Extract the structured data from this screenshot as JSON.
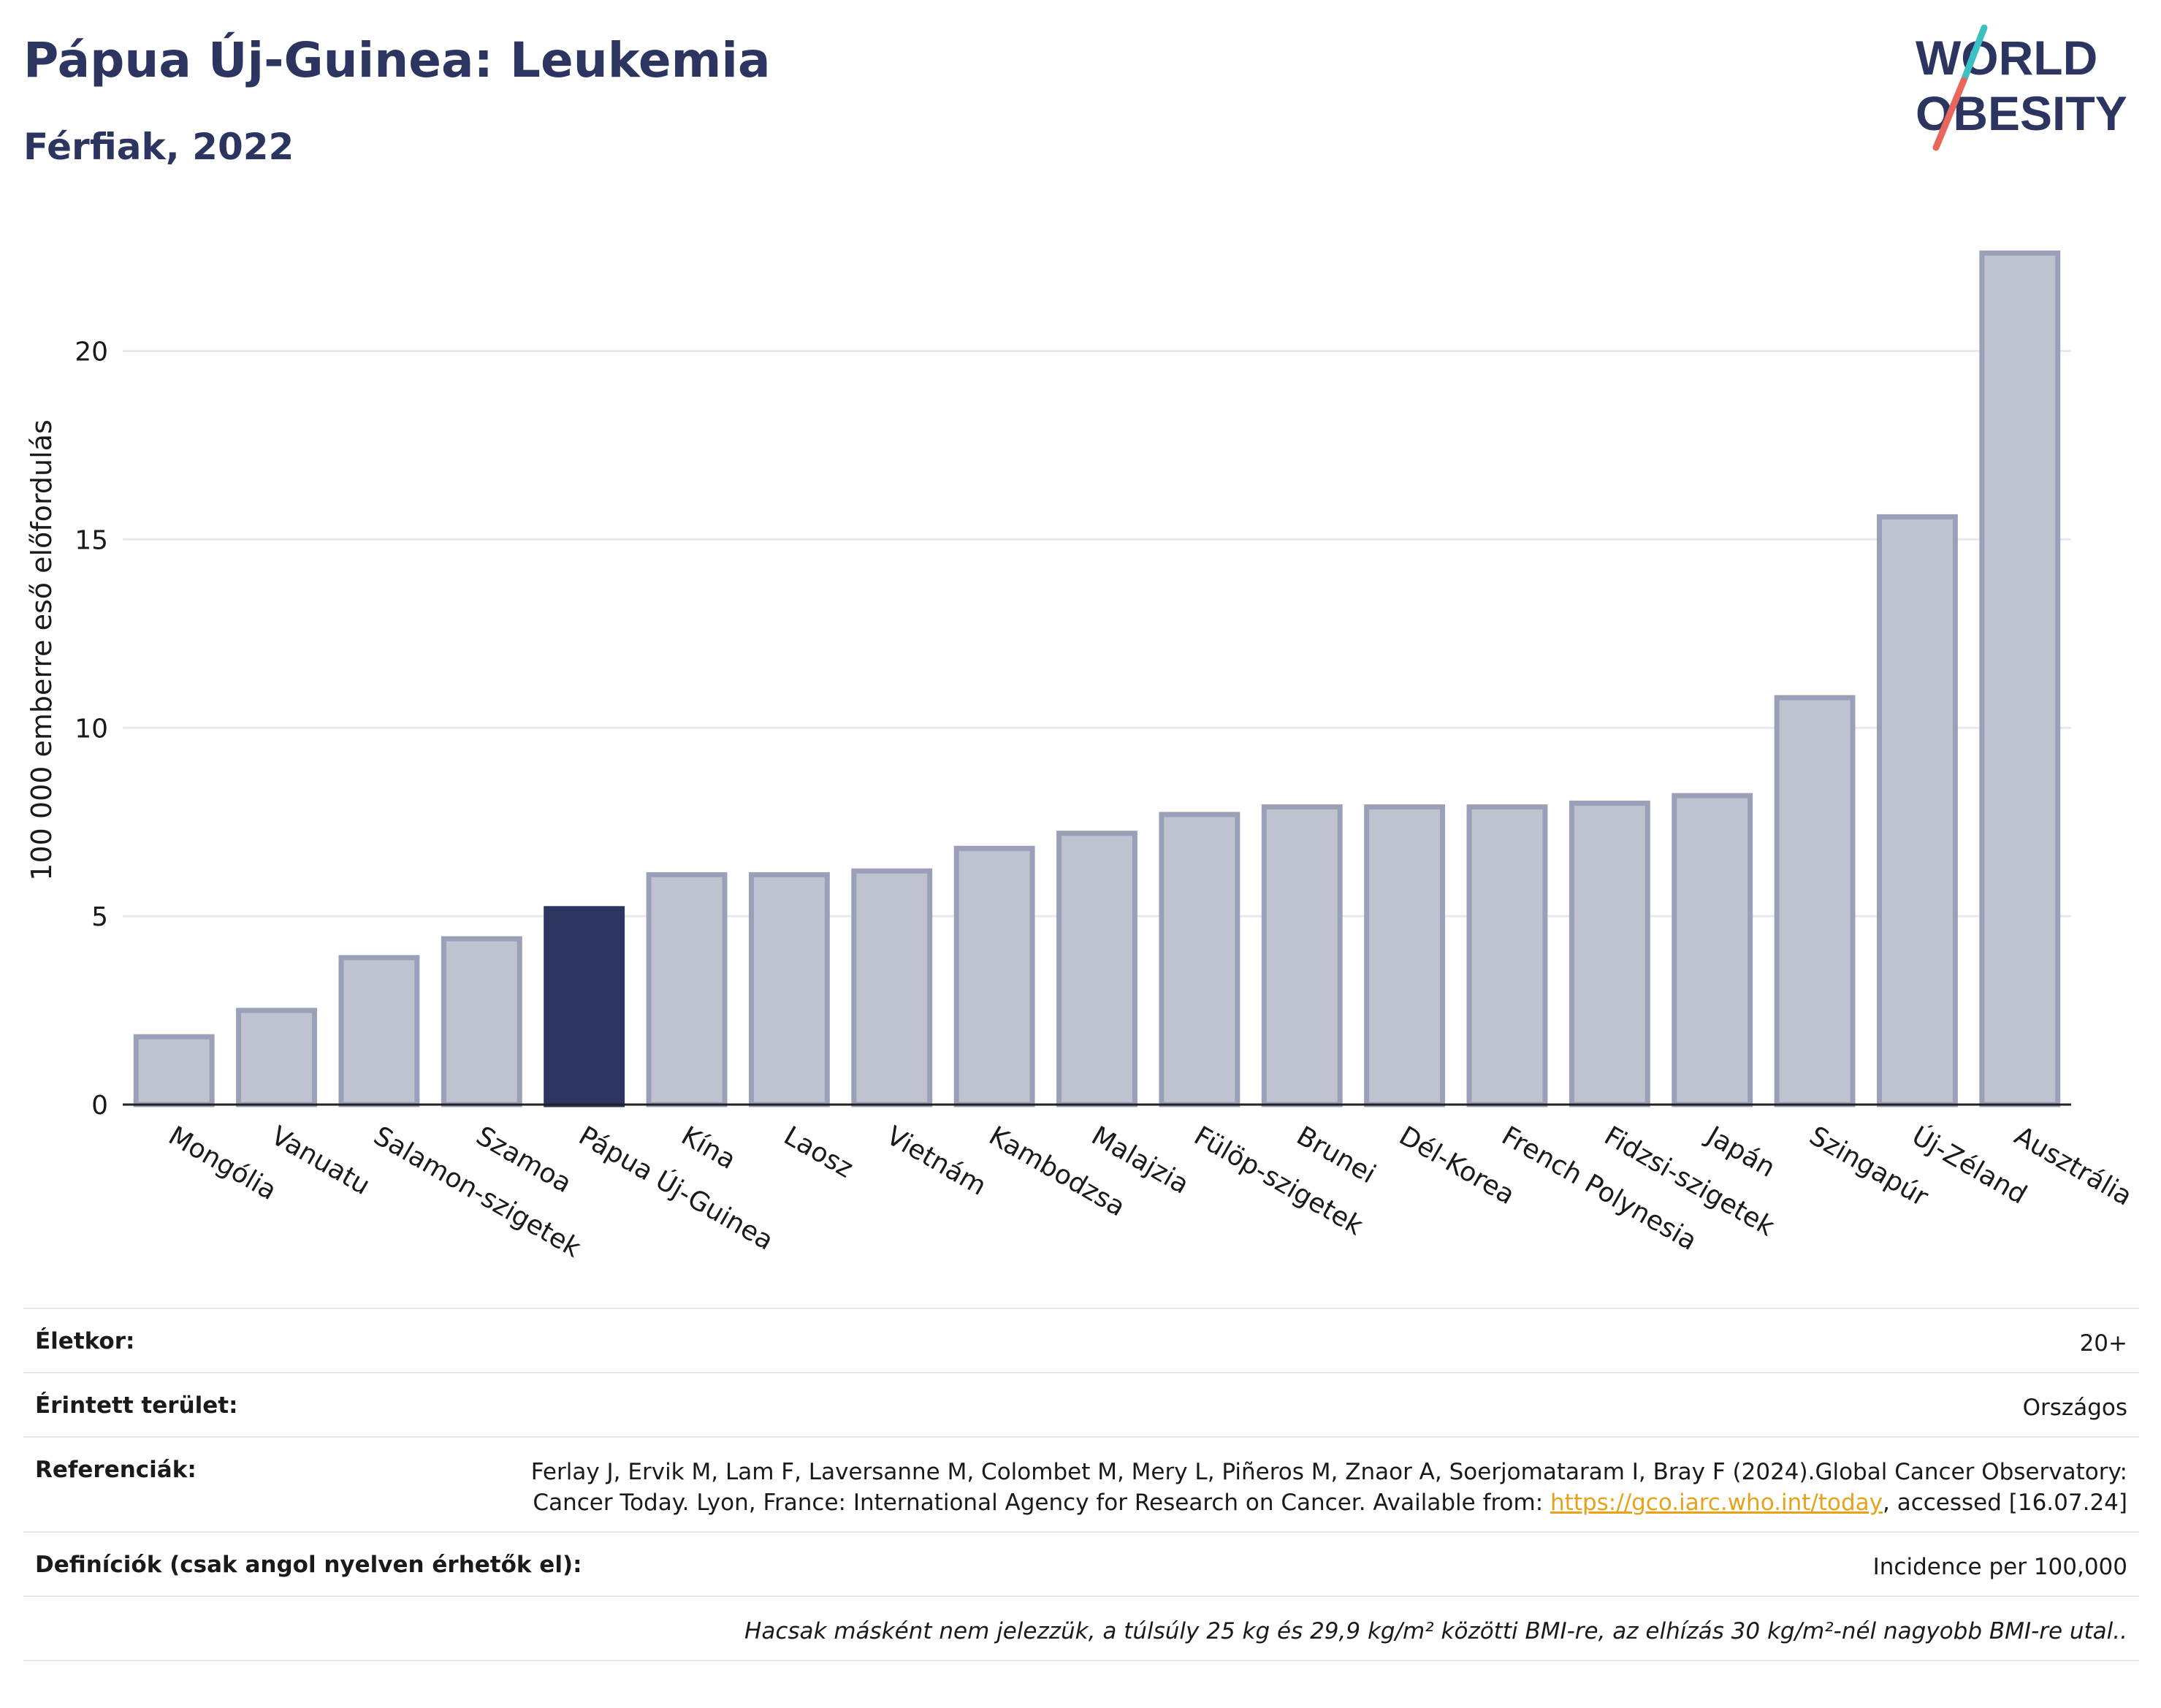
{
  "header": {
    "title": "Pápua Új-Guinea: Leukemia",
    "subtitle": "Férfiak, 2022"
  },
  "logo": {
    "line1": "WORLD",
    "line2": "OBESITY",
    "slash_colors": [
      "#3cc0c2",
      "#e8675a"
    ]
  },
  "colors": {
    "bar": "#bfc3d0",
    "bar_border": "#9aa0b8",
    "highlight": "#2b3560",
    "text": "#2b3560",
    "link": "#e8a21a"
  },
  "chart_data": {
    "type": "bar",
    "title": "Pápua Új-Guinea: Leukemia",
    "subtitle": "Férfiak, 2022",
    "ylabel": "100 000 emberre eső előfordulás",
    "xlabel": "",
    "ylim": [
      0,
      23.5
    ],
    "yticks": [
      0,
      5,
      10,
      15,
      20
    ],
    "grid": true,
    "highlight": "Pápua Új-Guinea",
    "categories": [
      "Mongólia",
      "Vanuatu",
      "Salamon-szigetek",
      "Szamoa",
      "Pápua Új-Guinea",
      "Kína",
      "Laosz",
      "Vietnám",
      "Kambodzsa",
      "Malajzia",
      "Fülöp-szigetek",
      "Brunei",
      "Dél-Korea",
      "French Polynesia",
      "Fidzsi-szigetek",
      "Japán",
      "Szingapúr",
      "Új-Zéland",
      "Ausztrália"
    ],
    "values": [
      1.8,
      2.5,
      3.9,
      4.4,
      5.2,
      6.1,
      6.1,
      6.2,
      6.8,
      7.2,
      7.7,
      7.9,
      7.9,
      7.9,
      8.0,
      8.2,
      10.8,
      15.6,
      22.6
    ]
  },
  "meta": {
    "age_label": "Életkor:",
    "age_value": "20+",
    "area_label": "Érintett terület:",
    "area_value": "Országos",
    "ref_label": "Referenciák:",
    "ref_text1": "Ferlay J, Ervik M, Lam F, Laversanne M, Colombet M, Mery L, Piñeros M, Znaor A, Soerjomataram I, Bray F (2024).Global Cancer Observatory: Cancer Today. Lyon, France: International Agency for Research on Cancer. Available from: ",
    "ref_link": "https://gco.iarc.who.int/today",
    "ref_text2": ", accessed [16.07.24]",
    "def_label": "Definíciók (csak angol nyelven érhetők el):",
    "def_value": "Incidence per 100,000",
    "note": "Hacsak másként nem jelezzük, a túlsúly 25 kg és 29,9 kg/m² közötti BMI-re, az elhízás 30 kg/m²-nél nagyobb BMI-re utal.."
  }
}
